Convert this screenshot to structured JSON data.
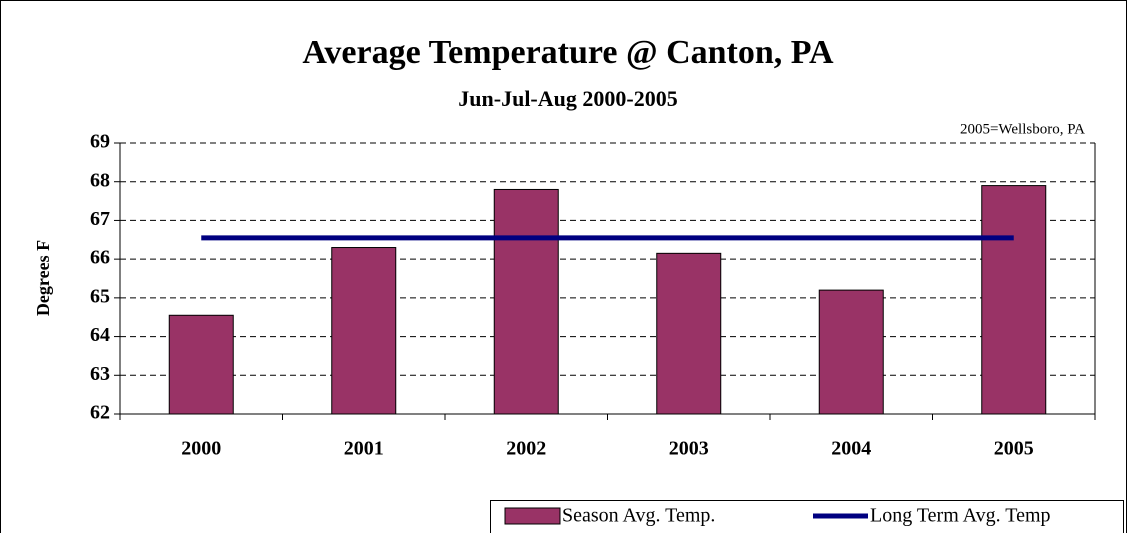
{
  "chart_data": {
    "type": "bar",
    "title": "Average Temperature @ Canton, PA",
    "subtitle": "Jun-Jul-Aug 2000-2005",
    "annotation": "2005=Wellsboro, PA",
    "y_label": "Degrees F",
    "categories": [
      "2000",
      "2001",
      "2002",
      "2003",
      "2004",
      "2005"
    ],
    "series": [
      {
        "name": "Season Avg. Temp.",
        "type": "bar",
        "color": "#993366",
        "values": [
          64.55,
          66.3,
          67.8,
          66.15,
          65.2,
          67.9
        ]
      },
      {
        "name": "Long Term Avg. Temp",
        "type": "line",
        "color": "#000080",
        "values": [
          66.55,
          66.55,
          66.55,
          66.55,
          66.55,
          66.55
        ]
      }
    ],
    "ylim": [
      62,
      69
    ],
    "yticks": [
      62,
      63,
      64,
      65,
      66,
      67,
      68,
      69
    ],
    "grid": true,
    "legend": "bottom-right"
  }
}
